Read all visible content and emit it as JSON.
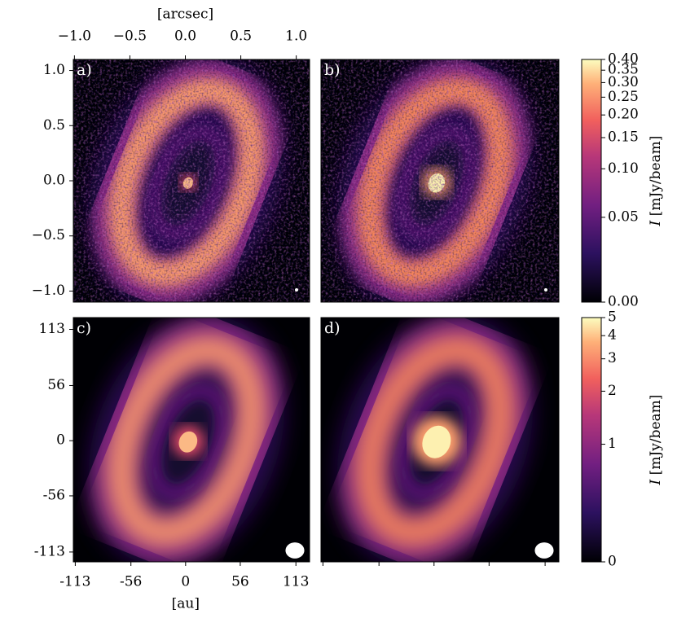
{
  "chart_data": {
    "type": "image-grid",
    "panels": [
      {
        "label": "a)",
        "row": 0,
        "col": 0
      },
      {
        "label": "b)",
        "row": 0,
        "col": 1
      },
      {
        "label": "c)",
        "row": 1,
        "col": 0
      },
      {
        "label": "d)",
        "row": 1,
        "col": 1
      }
    ],
    "top_axis": {
      "label": "[arcsec]",
      "xlim": [
        -1.01,
        1.12
      ],
      "xticks": [
        {
          "value": -1.0,
          "label": "−1.0"
        },
        {
          "value": -0.5,
          "label": "−0.5"
        },
        {
          "value": 0.0,
          "label": "0.0"
        },
        0.5,
        {
          "value": 1.0,
          "label": "1.0"
        }
      ],
      "ylim": [
        -1.1,
        1.1
      ],
      "yticks": [
        {
          "value": 1.0,
          "label": "1.0"
        },
        0.5,
        {
          "value": 0.0,
          "label": "0.0"
        },
        {
          "value": -0.5,
          "label": "−0.5"
        },
        {
          "value": -1.0,
          "label": "−1.0"
        }
      ]
    },
    "bottom_axis": {
      "label": "[au]",
      "xlim": [
        -115,
        127
      ],
      "xticks": [
        -113,
        -56,
        0,
        56,
        113
      ],
      "ylim": [
        -123,
        125
      ],
      "yticks": [
        113,
        56,
        0,
        -56,
        -113
      ]
    },
    "colorbars": [
      {
        "symbol": "I",
        "unit": "[mJy/beam]",
        "scale": "asinh",
        "lim": [
          0,
          0.4
        ],
        "ticks": [
          {
            "value": 0.0,
            "label": "0.00"
          },
          0.05,
          {
            "value": 0.1,
            "label": "0.10"
          },
          0.15,
          {
            "value": 0.2,
            "label": "0.20"
          },
          0.25,
          {
            "value": 0.3,
            "label": "0.30"
          },
          0.35,
          {
            "value": 0.4,
            "label": "0.40"
          }
        ]
      },
      {
        "symbol": "I",
        "unit": "[mJy/beam]",
        "scale": "asinh",
        "lim": [
          0,
          5
        ],
        "ticks": [
          0,
          1,
          2,
          3,
          4,
          5
        ]
      }
    ]
  }
}
